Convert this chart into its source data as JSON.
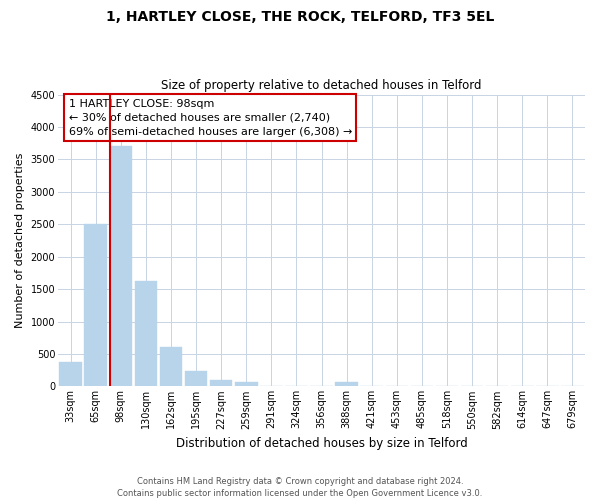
{
  "title": "1, HARTLEY CLOSE, THE ROCK, TELFORD, TF3 5EL",
  "subtitle": "Size of property relative to detached houses in Telford",
  "xlabel": "Distribution of detached houses by size in Telford",
  "ylabel": "Number of detached properties",
  "categories": [
    "33sqm",
    "65sqm",
    "98sqm",
    "130sqm",
    "162sqm",
    "195sqm",
    "227sqm",
    "259sqm",
    "291sqm",
    "324sqm",
    "356sqm",
    "388sqm",
    "421sqm",
    "453sqm",
    "485sqm",
    "518sqm",
    "550sqm",
    "582sqm",
    "614sqm",
    "647sqm",
    "679sqm"
  ],
  "values": [
    380,
    2500,
    3700,
    1620,
    600,
    245,
    100,
    60,
    0,
    0,
    0,
    60,
    0,
    0,
    0,
    0,
    0,
    0,
    0,
    0,
    0
  ],
  "bar_color": "#b8d4ea",
  "highlight_color": "#cc0000",
  "highlight_index": 2,
  "ylim": [
    0,
    4500
  ],
  "yticks": [
    0,
    500,
    1000,
    1500,
    2000,
    2500,
    3000,
    3500,
    4000,
    4500
  ],
  "annotation_title": "1 HARTLEY CLOSE: 98sqm",
  "annotation_line1": "← 30% of detached houses are smaller (2,740)",
  "annotation_line2": "69% of semi-detached houses are larger (6,308) →",
  "footnote1": "Contains HM Land Registry data © Crown copyright and database right 2024.",
  "footnote2": "Contains public sector information licensed under the Open Government Licence v3.0.",
  "background_color": "#ffffff",
  "grid_color": "#c8d4e4",
  "title_fontsize": 10,
  "subtitle_fontsize": 8.5,
  "ylabel_fontsize": 8,
  "xlabel_fontsize": 8.5,
  "tick_fontsize": 7,
  "footnote_fontsize": 6,
  "ann_fontsize": 8
}
